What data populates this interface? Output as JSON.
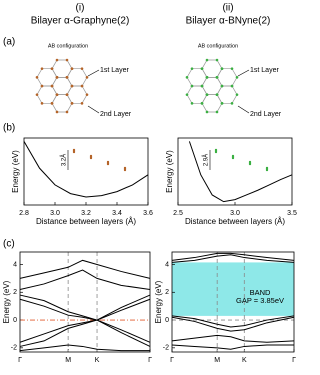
{
  "columns": [
    {
      "label": "(i)",
      "title": "Bilayer α-Graphyne(2)"
    },
    {
      "label": "(ii)",
      "title": "Bilayer α-BNyne(2)"
    }
  ],
  "panel_labels": [
    "(a)",
    "(b)",
    "(c)"
  ],
  "structures": [
    {
      "config": "AB configuration",
      "layer1": "1st Layer",
      "layer2": "2nd Layer",
      "color": "#b5652a"
    },
    {
      "config": "AB configuration",
      "layer1": "1st Layer",
      "layer2": "2nd Layer",
      "color": "#3cb043"
    }
  ],
  "chart_data": [
    {
      "type": "line",
      "xlabel": "Distance between layers (Å)",
      "ylabel": "Energy (eV)",
      "annotation": "3.2Å",
      "color": "#000000",
      "x": [
        2.8,
        2.9,
        3.0,
        3.1,
        3.2,
        3.3,
        3.4,
        3.5,
        3.6
      ],
      "values": [
        0.95,
        0.55,
        0.3,
        0.17,
        0.12,
        0.14,
        0.2,
        0.3,
        0.45
      ],
      "xlim": [
        2.8,
        3.6
      ],
      "ylim": [
        0,
        1
      ],
      "xticks": [
        2.8,
        {
          "value": 3,
          "label": "3.0"
        },
        3.2,
        3.4,
        3.6
      ]
    },
    {
      "type": "line",
      "xlabel": "Distance between layers (Å)",
      "ylabel": "Energy (eV)",
      "annotation": "2.9Å",
      "color": "#000000",
      "x": [
        2.6,
        2.7,
        2.8,
        2.9,
        3.0,
        3.1,
        3.2,
        3.3,
        3.4,
        3.5
      ],
      "values": [
        0.95,
        0.45,
        0.15,
        0.05,
        0.08,
        0.15,
        0.22,
        0.3,
        0.38,
        0.45
      ],
      "xlim": [
        2.5,
        3.5
      ],
      "ylim": [
        0,
        1
      ],
      "xticks": [
        2.5,
        {
          "value": 3,
          "label": "3.0"
        },
        3.5
      ]
    },
    {
      "type": "line",
      "ylabel": "Energy (eV)",
      "fermi_level": 0,
      "xgrid": true,
      "x": [
        0,
        0.5,
        1,
        1.3,
        1.6,
        2.1,
        2.7
      ],
      "series": [
        {
          "color": "#000000",
          "values": [
            -1.9,
            -1.5,
            -0.6,
            -0.3,
            0,
            -0.9,
            -1.9
          ]
        },
        {
          "color": "#000000",
          "values": [
            -1.6,
            -1.0,
            -0.4,
            -0.2,
            0,
            -0.7,
            -1.6
          ]
        },
        {
          "color": "#000000",
          "values": [
            1.5,
            1.0,
            0.35,
            0.2,
            0,
            0.7,
            1.5
          ]
        },
        {
          "color": "#000000",
          "values": [
            1.8,
            1.4,
            0.6,
            0.3,
            0,
            0.9,
            1.8
          ]
        },
        {
          "color": "#000000",
          "values": [
            2.2,
            2.6,
            3.2,
            3.6,
            3.0,
            2.5,
            2.2
          ]
        },
        {
          "color": "#000000",
          "values": [
            3.0,
            3.4,
            3.8,
            4.3,
            4.0,
            3.5,
            3.0
          ]
        },
        {
          "color": "#000000",
          "values": [
            -2.2,
            -2.0,
            -1.8,
            -1.9,
            -2.1,
            -2.2,
            -2.2
          ]
        }
      ],
      "xlim": [
        0,
        2.7
      ],
      "ylim": [
        -2.3,
        4.9
      ],
      "yticks": [
        -2,
        0,
        2,
        4
      ],
      "xticks": [
        {
          "value": 0,
          "label": "Γ"
        },
        {
          "value": 1,
          "label": "M"
        },
        {
          "value": 1.6,
          "label": "K"
        },
        {
          "value": 2.7,
          "label": "Γ"
        }
      ]
    },
    {
      "type": "line",
      "ylabel": "Energy (eV)",
      "fermi_level": 0,
      "xgrid": true,
      "band_gap": [
        0.3,
        4.15
      ],
      "gap_color": "#8ee8e8",
      "annotation": [
        "BAND",
        "GAP = 3.85eV"
      ],
      "x": [
        0,
        0.5,
        1,
        1.3,
        1.6,
        2.1,
        2.7
      ],
      "series": [
        {
          "color": "#000000",
          "values": [
            0.3,
            0.1,
            -0.3,
            -0.5,
            -0.4,
            0,
            0.3
          ]
        },
        {
          "color": "#000000",
          "values": [
            0.2,
            -0.1,
            -0.6,
            -0.8,
            -0.7,
            -0.2,
            0.2
          ]
        },
        {
          "color": "#000000",
          "values": [
            -1.5,
            -1.3,
            -1.1,
            -1.2,
            -1.5,
            -1.6,
            -1.5
          ]
        },
        {
          "color": "#000000",
          "values": [
            -1.8,
            -1.9,
            -2.0,
            -2.1,
            -1.9,
            -1.8,
            -1.8
          ]
        },
        {
          "color": "#000000",
          "values": [
            4.15,
            4.3,
            4.6,
            4.7,
            4.5,
            4.3,
            4.15
          ]
        },
        {
          "color": "#000000",
          "values": [
            4.3,
            4.5,
            4.8,
            4.8,
            4.7,
            4.5,
            4.3
          ]
        }
      ],
      "xlim": [
        0,
        2.7
      ],
      "ylim": [
        -2.3,
        4.9
      ],
      "yticks": [
        -2,
        0,
        2,
        4
      ],
      "xticks": [
        {
          "value": 0,
          "label": "Γ"
        },
        {
          "value": 1,
          "label": "M"
        },
        {
          "value": 1.6,
          "label": "K"
        },
        {
          "value": 2.7,
          "label": "Γ"
        }
      ]
    }
  ]
}
